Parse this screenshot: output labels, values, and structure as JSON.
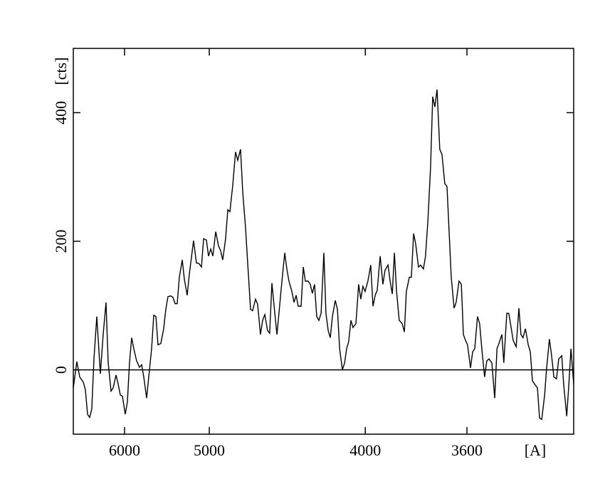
{
  "chart_data": {
    "type": "line",
    "xlabel": "[A]",
    "ylabel": "[cts]",
    "xscale": "inverse-square",
    "color": "#000000",
    "reference_line": 0,
    "xlim": [
      7003,
      3287
    ],
    "xticks": [
      6000,
      5000,
      4000,
      3600
    ],
    "ylim": [
      -100,
      500
    ],
    "yticks": [
      0,
      200,
      400
    ],
    "x": [
      7003,
      6917,
      6850,
      6769,
      6722,
      6675,
      6630,
      6586,
      6542,
      6485,
      6416,
      6363,
      6311,
      6272,
      6222,
      6185,
      6137,
      6102,
      6067,
      6033,
      5989,
      5956,
      5924,
      5892,
      5861,
      5820,
      5780,
      5750,
      5721,
      5683,
      5655,
      5618,
      5591,
      5564,
      5538,
      5504,
      5470,
      5445,
      5420,
      5388,
      5364,
      5340,
      5317,
      5294,
      5263,
      5241,
      5212,
      5190,
      5169,
      5148,
      5120,
      5099,
      5072,
      5052,
      5026,
      5007,
      4987,
      4968,
      4943,
      4919,
      4900,
      4883,
      4859,
      4841,
      4824,
      4801,
      4779,
      4762,
      4740,
      4723,
      4702,
      4686,
      4665,
      4650,
      4629,
      4614,
      4594,
      4579,
      4564,
      4545,
      4531,
      4516,
      4497,
      4483,
      4470,
      4451,
      4433,
      4420,
      4407,
      4389,
      4376,
      4363,
      4351,
      4334,
      4321,
      4309,
      4293,
      4281,
      4269,
      4257,
      4245,
      4233,
      4221,
      4206,
      4195,
      4183,
      4172,
      4161,
      4146,
      4135,
      4124,
      4110,
      4099,
      4089,
      4079,
      4068,
      4058,
      4044,
      4031,
      4021,
      4011,
      4001,
      3988,
      3975,
      3965,
      3955,
      3946,
      3933,
      3921,
      3912,
      3899,
      3890,
      3881,
      3872,
      3863,
      3852,
      3840,
      3831,
      3823,
      3811,
      3803,
      3794,
      3786,
      3775,
      3767,
      3756,
      3748,
      3739,
      3729,
      3721,
      3713,
      3705,
      3695,
      3687,
      3677,
      3669,
      3661,
      3654,
      3644,
      3637,
      3627,
      3619,
      3612,
      3605,
      3598,
      3588,
      3581,
      3574,
      3565,
      3558,
      3551,
      3542,
      3535,
      3528,
      3519,
      3510,
      3503,
      3497,
      3488,
      3482,
      3473,
      3467,
      3460,
      3454,
      3445,
      3437,
      3431,
      3425,
      3418,
      3410,
      3404,
      3398,
      3392,
      3384,
      3378,
      3372,
      3364,
      3359,
      3351,
      3345,
      3339,
      3332,
      3326,
      3318,
      3313,
      3305,
      3300,
      3294,
      3287
    ],
    "values": [
      -28,
      13,
      -11,
      -19,
      -31,
      -69,
      -74,
      -61,
      17,
      83,
      -6,
      55,
      105,
      11,
      -33,
      -28,
      -8,
      -22,
      -39,
      -41,
      -69,
      -50,
      11,
      50,
      33,
      14,
      4,
      8,
      -11,
      -44,
      -11,
      33,
      85,
      83,
      39,
      41,
      64,
      94,
      114,
      115,
      113,
      103,
      103,
      144,
      171,
      141,
      116,
      149,
      175,
      201,
      166,
      166,
      160,
      204,
      202,
      177,
      188,
      177,
      215,
      193,
      185,
      171,
      204,
      249,
      246,
      287,
      339,
      326,
      343,
      276,
      221,
      166,
      94,
      92,
      110,
      102,
      55,
      77,
      86,
      61,
      57,
      135,
      88,
      55,
      88,
      138,
      182,
      157,
      138,
      122,
      105,
      116,
      99,
      99,
      160,
      138,
      138,
      133,
      119,
      133,
      83,
      77,
      88,
      182,
      88,
      61,
      50,
      83,
      108,
      94,
      33,
      0,
      11,
      33,
      44,
      77,
      66,
      72,
      133,
      110,
      130,
      122,
      138,
      163,
      99,
      116,
      124,
      177,
      133,
      155,
      163,
      138,
      118,
      182,
      122,
      77,
      72,
      59,
      122,
      144,
      144,
      212,
      196,
      160,
      163,
      157,
      177,
      232,
      315,
      425,
      409,
      436,
      343,
      335,
      290,
      285,
      210,
      144,
      96,
      105,
      138,
      133,
      55,
      46,
      39,
      3,
      28,
      33,
      83,
      72,
      33,
      -11,
      14,
      17,
      11,
      -44,
      33,
      41,
      55,
      11,
      88,
      88,
      66,
      46,
      36,
      96,
      55,
      50,
      64,
      39,
      28,
      -17,
      -22,
      -28,
      -75,
      -77,
      -39,
      0,
      48,
      22,
      -11,
      -14,
      17,
      22,
      -22,
      -72,
      -28,
      33,
      -22
    ]
  }
}
